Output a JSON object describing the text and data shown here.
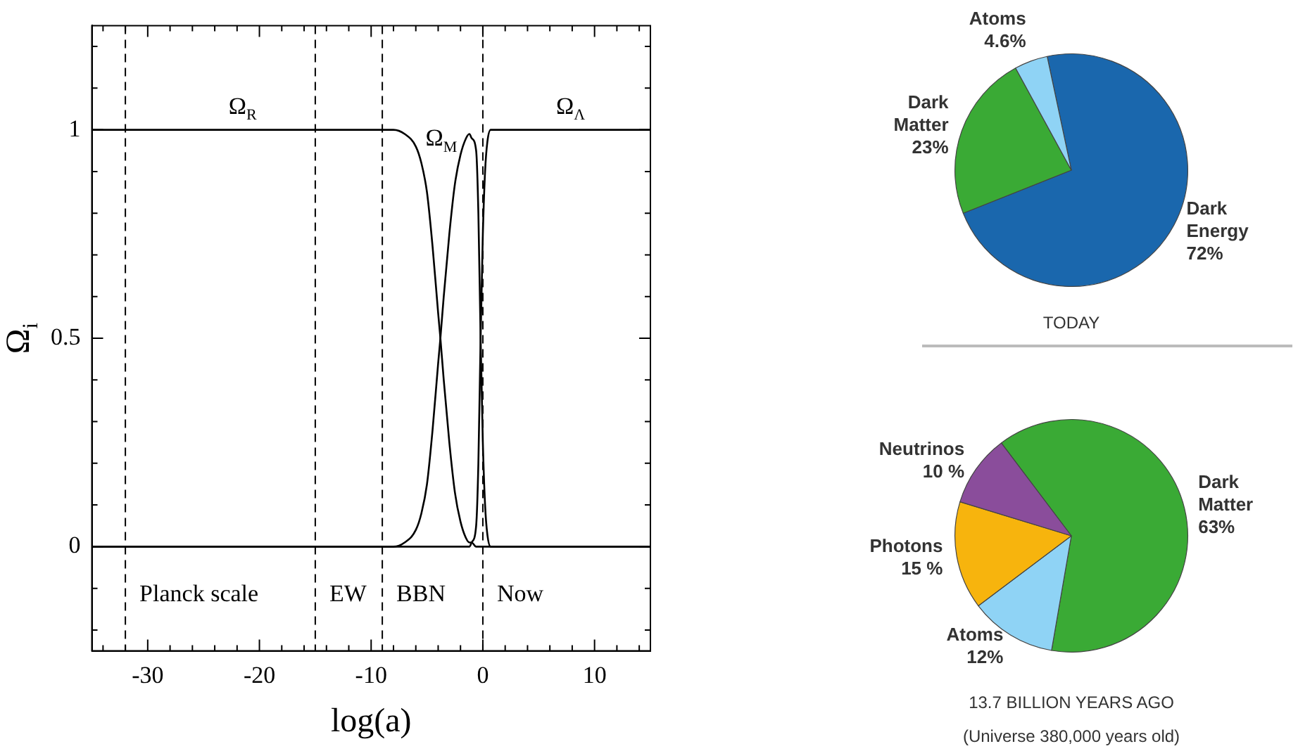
{
  "chart_data": [
    {
      "type": "line",
      "xlabel": "log(a)",
      "ylabel": "Ω$_{i}$",
      "x": [
        -35,
        -8,
        -7,
        -6,
        -5.5,
        -5,
        -4.5,
        -4,
        -3.8,
        -3.5,
        -3,
        -2.5,
        -2,
        -1.5,
        -1.2,
        -1,
        -0.6,
        -0.4,
        -0.2,
        0,
        0.2,
        0.4,
        0.7,
        15
      ],
      "series": [
        {
          "name": "Ω$_{R}$",
          "color": "#000000",
          "values": [
            1,
            1,
            0.99,
            0.96,
            0.92,
            0.85,
            0.72,
            0.56,
            0.5,
            0.4,
            0.25,
            0.13,
            0.06,
            0.02,
            0.01,
            0.01,
            0,
            0,
            0,
            0,
            0,
            0,
            0,
            0
          ]
        },
        {
          "name": "Ω$_{M}$",
          "color": "#000000",
          "values": [
            0,
            0,
            0.01,
            0.04,
            0.08,
            0.15,
            0.28,
            0.44,
            0.5,
            0.6,
            0.75,
            0.87,
            0.94,
            0.98,
            0.99,
            0.98,
            0.95,
            0.8,
            0.5,
            0.25,
            0.1,
            0.03,
            0,
            0
          ]
        },
        {
          "name": "Ω$_{Λ}$",
          "color": "#000000",
          "values": [
            0,
            0,
            0,
            0,
            0,
            0,
            0,
            0,
            0,
            0,
            0,
            0,
            0,
            0,
            0,
            0.01,
            0.05,
            0.2,
            0.5,
            0.75,
            0.9,
            0.97,
            1,
            1
          ]
        }
      ],
      "xlim": [
        -35,
        15
      ],
      "ylim": [
        -0.25,
        1.25
      ],
      "xticks": [
        {
          "value": -34,
          "label": null
        },
        {
          "value": -32,
          "label": null
        },
        -30,
        {
          "value": -28,
          "label": null
        },
        {
          "value": -26,
          "label": null
        },
        {
          "value": -24,
          "label": null
        },
        {
          "value": -22,
          "label": null
        },
        -20,
        {
          "value": -18,
          "label": null
        },
        {
          "value": -16,
          "label": null
        },
        {
          "value": -14,
          "label": null
        },
        {
          "value": -12,
          "label": null
        },
        -10,
        {
          "value": -8,
          "label": null
        },
        {
          "value": -6,
          "label": null
        },
        {
          "value": -4,
          "label": null
        },
        {
          "value": -2,
          "label": null
        },
        0,
        {
          "value": 2,
          "label": null
        },
        {
          "value": 4,
          "label": null
        },
        {
          "value": 6,
          "label": null
        },
        {
          "value": 8,
          "label": null
        },
        10,
        {
          "value": 12,
          "label": null
        },
        {
          "value": 14,
          "label": null
        }
      ],
      "yticks": [
        {
          "value": -0.2,
          "label": null
        },
        {
          "value": -0.1,
          "label": null
        },
        0,
        {
          "value": 0.1,
          "label": null
        },
        {
          "value": 0.2,
          "label": null
        },
        {
          "value": 0.3,
          "label": null
        },
        {
          "value": 0.4,
          "label": null
        },
        0.5,
        {
          "value": 0.6,
          "label": null
        },
        {
          "value": 0.7,
          "label": null
        },
        {
          "value": 0.8,
          "label": null
        },
        {
          "value": 0.9,
          "label": null
        },
        1,
        {
          "value": 1.1,
          "label": null
        },
        {
          "value": 1.2,
          "label": null
        }
      ],
      "ref_lines": [
        {
          "axis": "x",
          "value": -32,
          "line_style": "dashed",
          "label": "Planck scale"
        },
        {
          "axis": "x",
          "value": -15,
          "line_style": "dashed",
          "label": "EW"
        },
        {
          "axis": "x",
          "value": -9,
          "line_style": "dashed",
          "label": "BBN"
        },
        {
          "axis": "x",
          "value": 0,
          "line_style": "dashed",
          "label": "Now"
        }
      ]
    },
    {
      "type": "pie",
      "title": "TODAY",
      "categories": [
        "Dark Energy",
        "Dark Matter",
        "Atoms"
      ],
      "values": [
        72,
        23,
        4.6
      ],
      "colors": [
        "#1a67ad",
        "#3aaa35",
        "#8fd3f5"
      ],
      "value_labels": [
        "72%",
        "23%",
        "4.6%"
      ]
    },
    {
      "type": "pie",
      "title": "13.7 BILLION YEARS AGO",
      "subtitle": "(Universe 380,000 years old)",
      "categories": [
        "Dark Matter",
        "Atoms",
        "Photons",
        "Neutrinos"
      ],
      "values": [
        63,
        12,
        15,
        10
      ],
      "colors": [
        "#3aaa35",
        "#8fd3f5",
        "#f7b40d",
        "#8a4d9b"
      ],
      "value_labels": [
        "63%",
        "12%",
        "15 %",
        "10 %"
      ]
    }
  ]
}
